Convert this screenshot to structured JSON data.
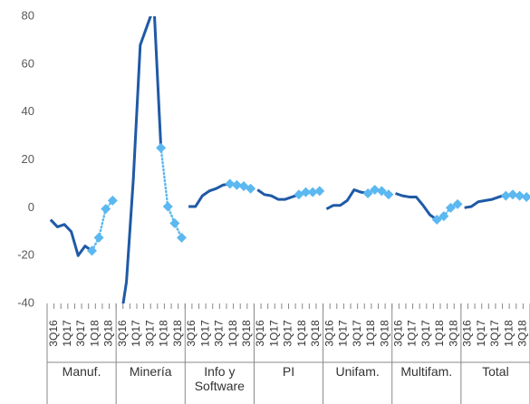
{
  "chart_data": {
    "type": "line",
    "ylim": [
      -40,
      80
    ],
    "yticks": [
      -40,
      -20,
      0,
      20,
      40,
      60,
      80
    ],
    "groups": [
      "Manuf.",
      "Minería",
      "Info y Software",
      "PI",
      "Unifam.",
      "Multifam.",
      "Total"
    ],
    "categories": [
      "3Q16",
      null,
      "1Q17",
      null,
      "3Q17",
      null,
      "1Q18",
      null,
      "3Q18",
      null,
      "3Q16",
      null,
      "1Q17",
      null,
      "3Q17",
      null,
      "1Q18",
      null,
      "3Q18",
      null,
      "3Q16",
      null,
      "1Q17",
      null,
      "3Q17",
      null,
      "1Q18",
      null,
      "3Q18",
      null,
      "3Q16",
      null,
      "1Q17",
      null,
      "3Q17",
      null,
      "1Q18",
      null,
      "3Q18",
      null,
      "3Q16",
      null,
      "1Q17",
      null,
      "3Q17",
      null,
      "1Q18",
      null,
      "3Q18",
      null,
      "3Q16",
      null,
      "1Q17",
      null,
      "3Q17",
      null,
      "1Q18",
      null,
      "3Q18",
      null,
      "3Q16",
      null,
      "1Q17",
      null,
      "3Q17",
      null,
      "1Q18",
      null,
      "3Q18",
      null
    ],
    "series": [
      {
        "color": "#1f5aa6",
        "style": "solid",
        "values": [
          -5,
          -8,
          -7,
          -10,
          -20,
          -16,
          -18,
          null,
          null,
          null,
          -50,
          -31,
          12,
          68,
          76,
          84,
          25,
          null,
          null,
          null,
          0.5,
          0.5,
          5,
          7,
          8,
          9.5,
          10,
          null,
          null,
          null,
          7.5,
          5.5,
          5,
          3.5,
          3.5,
          4.5,
          5.5,
          null,
          null,
          null,
          -0.5,
          1,
          1,
          3,
          7.5,
          6.5,
          6,
          null,
          null,
          null,
          6,
          5,
          4.5,
          4.5,
          1,
          -3,
          -5,
          null,
          null,
          null,
          0,
          0.5,
          2.5,
          3,
          3.5,
          4.5,
          5.5,
          null,
          null,
          null
        ]
      },
      {
        "color": "#5bb8f0",
        "style": "dotted",
        "marker": "diamond",
        "values": [
          null,
          null,
          null,
          null,
          null,
          null,
          -18,
          -12.5,
          -0.5,
          3,
          null,
          null,
          null,
          null,
          null,
          null,
          25,
          0.5,
          -6.5,
          -12.5,
          null,
          null,
          null,
          null,
          null,
          null,
          10,
          9.5,
          9,
          8,
          null,
          null,
          null,
          null,
          null,
          null,
          5.5,
          6.5,
          6.5,
          7,
          null,
          null,
          null,
          null,
          null,
          null,
          6,
          7.5,
          7,
          5.5,
          null,
          null,
          null,
          null,
          null,
          null,
          -5,
          -3.5,
          0,
          1.5,
          null,
          null,
          null,
          null,
          null,
          null,
          5,
          5.5,
          5,
          4.5
        ]
      }
    ]
  }
}
